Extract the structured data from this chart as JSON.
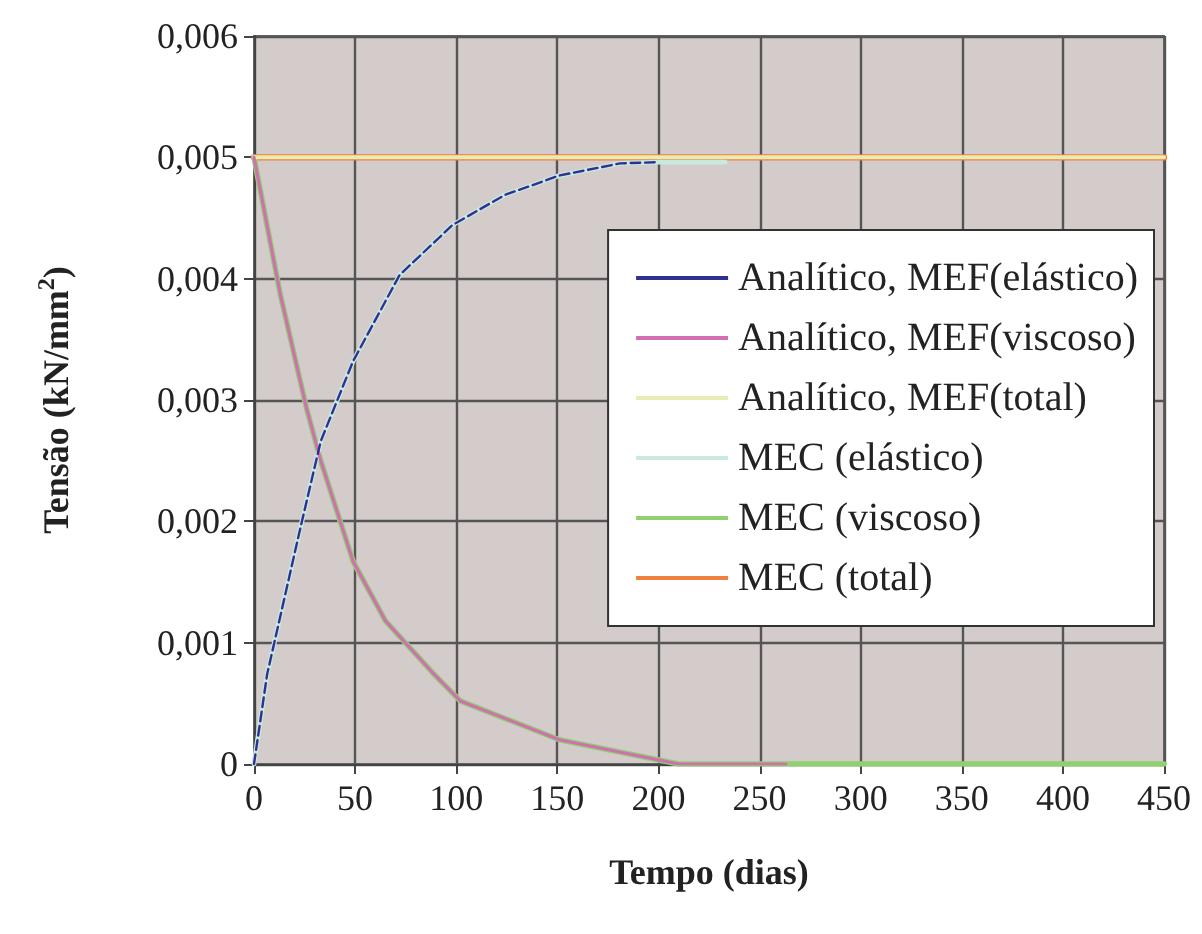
{
  "chart_data": {
    "type": "line",
    "xlabel": "Tempo (dias)",
    "ylabel": "Tensão (kN/mm$^{2}$)",
    "xlim": [
      0,
      450
    ],
    "xticks": [
      0,
      50,
      100,
      150,
      200,
      250,
      300,
      350,
      400,
      450
    ],
    "ylim": [
      0,
      0.006
    ],
    "yticks": [
      0,
      {
        "value": 0.001,
        "label": "0,001"
      },
      {
        "value": 0.002,
        "label": "0,002"
      },
      {
        "value": 0.003,
        "label": "0,003"
      },
      {
        "value": 0.004,
        "label": "0,004"
      },
      {
        "value": 0.005,
        "label": "0,005"
      },
      {
        "value": 0.006,
        "label": "0,006"
      }
    ],
    "grid": true,
    "legend": "right",
    "marker": "none",
    "series": [
      {
        "name": "Analítico, MEF(elástico)",
        "color": "#2e3192",
        "line_style": "dashed",
        "x": [
          0,
          6.5,
          23,
          33,
          49,
          72,
          98,
          124,
          151,
          181,
          200
        ],
        "values": [
          0,
          0.00074,
          0.00195,
          0.00266,
          0.00332,
          0.00403,
          0.00444,
          0.00469,
          0.00485,
          0.00495,
          0.00496
        ]
      },
      {
        "name": "Analítico, MEF(viscoso)",
        "color": "#d070b0",
        "x": [
          0,
          13,
          26,
          33,
          49,
          65,
          89,
          102,
          151,
          210,
          263
        ],
        "values": [
          0.005,
          0.00387,
          0.00293,
          0.0025,
          0.00167,
          0.00118,
          0.00074,
          0.00052,
          0.0002,
          0,
          0
        ]
      },
      {
        "name": "Analítico, MEF(total)",
        "color": "#e8ecb0",
        "x": [
          0,
          450
        ],
        "values": [
          0.005,
          0.005
        ]
      },
      {
        "name": "MEC (elástico)",
        "color": "#c8e8e0",
        "x": [
          0,
          6.5,
          23,
          33,
          49,
          72,
          98,
          124,
          151,
          181,
          200,
          233
        ],
        "values": [
          0,
          0.00074,
          0.00195,
          0.00266,
          0.00332,
          0.00403,
          0.00444,
          0.00469,
          0.00485,
          0.00495,
          0.00496,
          0.00496
        ]
      },
      {
        "name": "MEC (viscoso)",
        "color": "#90d070",
        "x": [
          0,
          13,
          26,
          33,
          49,
          65,
          89,
          102,
          151,
          210,
          263,
          450
        ],
        "values": [
          0.005,
          0.00387,
          0.00293,
          0.0025,
          0.00167,
          0.00118,
          0.00074,
          0.00052,
          0.0002,
          0,
          0,
          0
        ]
      },
      {
        "name": "MEC (total)",
        "color": "#f08040",
        "x": [
          0,
          450
        ],
        "values": [
          0.005,
          0.005
        ]
      }
    ]
  }
}
